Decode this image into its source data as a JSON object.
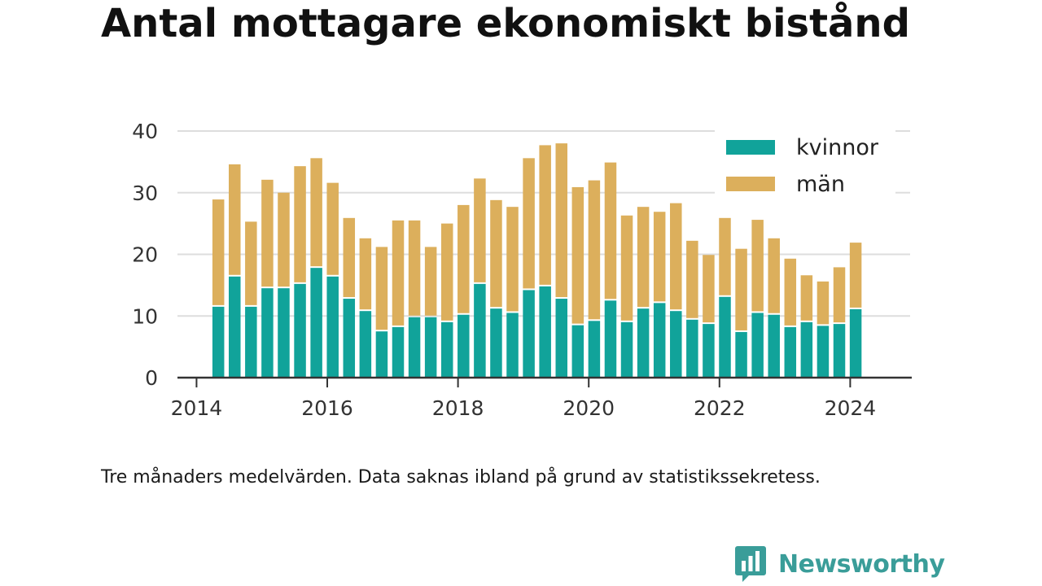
{
  "title": "Antal mottagare ekonomiskt bistånd",
  "note": "Tre månaders medelvärden. Data saknas ibland på grund av statistikssekretess.",
  "brand": {
    "name": "Newsworthy",
    "logo_icon": "bar-chart-speech-bubble-icon"
  },
  "colors": {
    "kvinnor": "#11a39a",
    "man": "#dcaf5c",
    "grid": "#dddddd",
    "axis": "#333333",
    "brand": "#3a9d99"
  },
  "chart_data": {
    "type": "bar",
    "stacked": true,
    "title": "Antal mottagare ekonomiskt bistånd",
    "xlabel": "",
    "ylabel": "",
    "ylim": [
      0,
      40
    ],
    "yticks": [
      0,
      10,
      20,
      30,
      40
    ],
    "xticks": [
      "2014",
      "2016",
      "2018",
      "2020",
      "2022",
      "2024"
    ],
    "xlim": [
      "2014-01",
      "2024-12"
    ],
    "grid": true,
    "legend": "top-right",
    "categories": [
      "2014-05",
      "2014-08",
      "2014-11",
      "2015-02",
      "2015-05",
      "2015-08",
      "2015-11",
      "2016-02",
      "2016-05",
      "2016-08",
      "2016-11",
      "2017-02",
      "2017-05",
      "2017-08",
      "2017-11",
      "2018-02",
      "2018-05",
      "2018-08",
      "2018-11",
      "2019-02",
      "2019-05",
      "2019-08",
      "2019-11",
      "2020-02",
      "2020-05",
      "2020-08",
      "2020-11",
      "2021-02",
      "2021-05",
      "2021-08",
      "2021-11",
      "2022-02",
      "2022-05",
      "2022-08",
      "2022-11",
      "2023-02",
      "2023-05",
      "2023-08",
      "2023-11",
      "2024-02"
    ],
    "series": [
      {
        "name": "kvinnor",
        "values": [
          11.5,
          16.4,
          11.5,
          14.5,
          14.5,
          15.2,
          17.8,
          16.4,
          12.8,
          10.8,
          7.5,
          8.2,
          9.8,
          9.8,
          9.0,
          10.2,
          15.2,
          11.2,
          10.5,
          14.2,
          14.8,
          12.8,
          8.5,
          9.2,
          12.5,
          9.0,
          11.2,
          12.1,
          10.8,
          9.4,
          8.7,
          13.1,
          7.4,
          10.5,
          10.2,
          8.2,
          9.0,
          8.4,
          8.7,
          11.1
        ]
      },
      {
        "name": "män",
        "values": [
          17.4,
          18.2,
          13.8,
          17.6,
          15.5,
          19.1,
          17.8,
          15.2,
          13.1,
          11.8,
          13.7,
          17.3,
          15.7,
          11.4,
          16.0,
          17.8,
          17.1,
          17.6,
          17.2,
          21.4,
          22.9,
          25.2,
          22.4,
          22.8,
          22.4,
          17.3,
          16.5,
          14.8,
          17.5,
          12.8,
          11.2,
          12.8,
          13.5,
          15.1,
          12.4,
          11.1,
          7.6,
          7.2,
          9.2,
          10.8
        ]
      }
    ]
  }
}
